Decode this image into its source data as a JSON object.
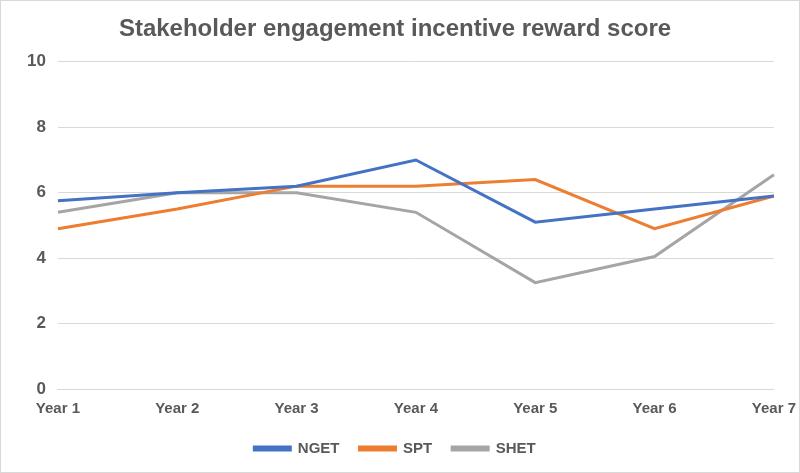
{
  "chart_data": {
    "type": "line",
    "title": "Stakeholder engagement incentive reward score",
    "categories": [
      "Year 1",
      "Year 2",
      "Year 3",
      "Year 4",
      "Year 5",
      "Year 6",
      "Year 7"
    ],
    "series": [
      {
        "name": "NGET",
        "color": "#4472c4",
        "values": [
          5.75,
          6.0,
          6.2,
          7.0,
          5.1,
          5.5,
          5.9
        ]
      },
      {
        "name": "SPT",
        "color": "#ed7d31",
        "values": [
          4.9,
          5.5,
          6.2,
          6.2,
          6.4,
          4.9,
          5.9
        ]
      },
      {
        "name": "SHET",
        "color": "#a5a5a5",
        "values": [
          5.4,
          6.0,
          6.0,
          5.4,
          3.25,
          4.05,
          6.55
        ]
      }
    ],
    "ylim": [
      0,
      10
    ],
    "yticks": [
      0,
      2,
      4,
      6,
      8,
      10
    ],
    "grid": true,
    "legend": "bottom",
    "marker": "none"
  }
}
